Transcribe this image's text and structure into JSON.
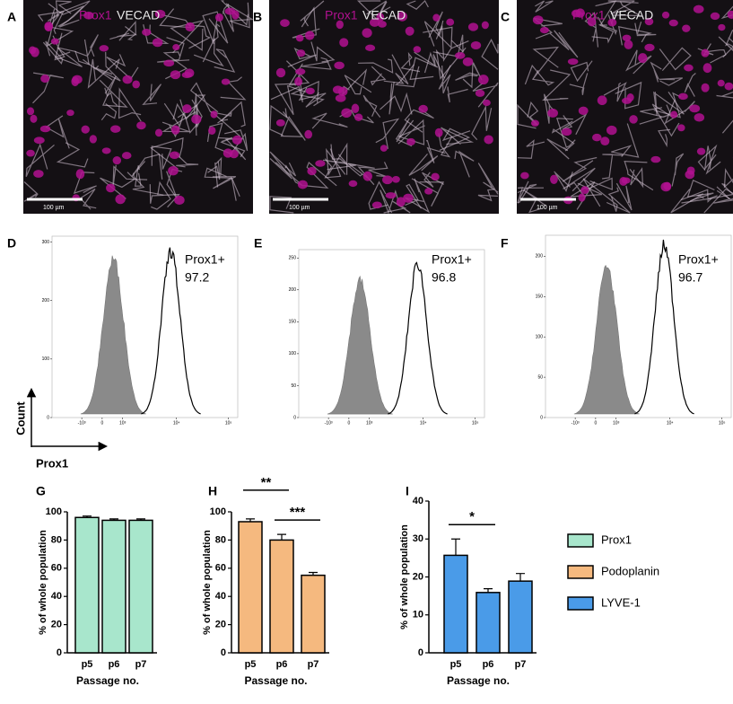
{
  "images": [
    {
      "letter": "A",
      "stain1": "Prox1",
      "stain2": "VECAD",
      "scale": "100 µm"
    },
    {
      "letter": "B",
      "stain1": "Prox1",
      "stain2": "VECAD",
      "scale": "100 µm"
    },
    {
      "letter": "C",
      "stain1": "Prox1",
      "stain2": "VECAD",
      "scale": "100 µm"
    }
  ],
  "histograms": [
    {
      "letter": "D",
      "label": "Prox1+",
      "percent": 97.2,
      "ylim": [
        0,
        310
      ],
      "yticks": [
        0,
        100,
        200,
        300
      ],
      "xticks": [
        "-10³",
        "0",
        "10³",
        "10⁴",
        "10⁵"
      ]
    },
    {
      "letter": "E",
      "label": "Prox1+",
      "percent": 96.8,
      "ylim": [
        0,
        263
      ],
      "yticks": [
        0,
        50,
        100,
        150,
        200,
        250
      ],
      "xticks": [
        "-10³",
        "0",
        "10³",
        "10⁴",
        "10⁵"
      ]
    },
    {
      "letter": "F",
      "label": "Prox1+",
      "percent": 96.7,
      "ylim": [
        0,
        226
      ],
      "yticks": [
        0,
        50,
        100,
        150,
        200
      ],
      "xticks": [
        "-10³",
        "0",
        "10³",
        "10⁴",
        "10⁵"
      ]
    }
  ],
  "axis_key": {
    "y": "Count",
    "x": "Prox1"
  },
  "chart_data": [
    {
      "type": "bar",
      "letter": "G",
      "ylabel": "% of whole population",
      "xlabel": "Passage no.",
      "categories": [
        "p5",
        "p6",
        "p7"
      ],
      "series": [
        {
          "name": "Prox1",
          "color": "#a8e6cc",
          "values": [
            96,
            94,
            94
          ],
          "errors": [
            1,
            1,
            1
          ]
        }
      ],
      "ylim": [
        0,
        100
      ],
      "yticks": [
        0,
        20,
        40,
        60,
        80,
        100
      ],
      "annotations": []
    },
    {
      "type": "bar",
      "letter": "H",
      "ylabel": "% of whole population",
      "xlabel": "Passage no.",
      "categories": [
        "p5",
        "p6",
        "p7"
      ],
      "series": [
        {
          "name": "Podoplanin",
          "color": "#f5b97f",
          "values": [
            93,
            80,
            55
          ],
          "errors": [
            2,
            4,
            2
          ]
        }
      ],
      "ylim": [
        0,
        100
      ],
      "yticks": [
        0,
        20,
        40,
        60,
        80,
        100
      ],
      "annotations": [
        {
          "text": "**",
          "categories": [
            "p5",
            "p6"
          ]
        },
        {
          "text": "***",
          "categories": [
            "p6",
            "p7"
          ]
        }
      ]
    },
    {
      "type": "bar",
      "letter": "I",
      "ylabel": "% of whole population",
      "xlabel": "Passage no.",
      "categories": [
        "p5",
        "p6",
        "p7"
      ],
      "series": [
        {
          "name": "LYVE-1",
          "color": "#4a9be8",
          "values": [
            25.7,
            15.9,
            18.9
          ],
          "errors": [
            4.3,
            1,
            2
          ]
        }
      ],
      "ylim": [
        0,
        40
      ],
      "yticks": [
        0,
        10,
        20,
        30,
        40
      ],
      "annotations": [
        {
          "text": "*",
          "categories": [
            "p5",
            "p6"
          ]
        }
      ]
    }
  ]
}
